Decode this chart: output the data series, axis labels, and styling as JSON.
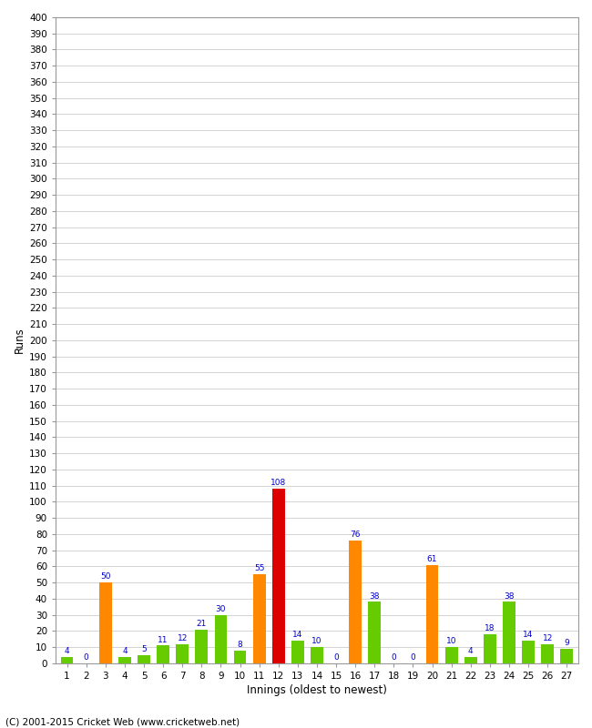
{
  "innings": [
    1,
    2,
    3,
    4,
    5,
    6,
    7,
    8,
    9,
    10,
    11,
    12,
    13,
    14,
    15,
    16,
    17,
    18,
    19,
    20,
    21,
    22,
    23,
    24,
    25,
    26,
    27
  ],
  "values": [
    4,
    0,
    50,
    4,
    5,
    11,
    12,
    21,
    30,
    8,
    55,
    108,
    14,
    10,
    0,
    76,
    38,
    0,
    0,
    61,
    10,
    4,
    18,
    38,
    14,
    12,
    9
  ],
  "colors": [
    "#66cc00",
    "#66cc00",
    "#ff8800",
    "#66cc00",
    "#66cc00",
    "#66cc00",
    "#66cc00",
    "#66cc00",
    "#66cc00",
    "#66cc00",
    "#ff8800",
    "#dd0000",
    "#66cc00",
    "#66cc00",
    "#66cc00",
    "#ff8800",
    "#66cc00",
    "#66cc00",
    "#66cc00",
    "#ff8800",
    "#66cc00",
    "#66cc00",
    "#66cc00",
    "#66cc00",
    "#66cc00",
    "#66cc00",
    "#66cc00"
  ],
  "xlabel": "Innings (oldest to newest)",
  "ylabel": "Runs",
  "ylim": [
    0,
    400
  ],
  "ytick_step": 10,
  "footer": "(C) 2001-2015 Cricket Web (www.cricketweb.net)",
  "label_color": "#0000cc",
  "grid_color": "#cccccc",
  "bg_color": "#ffffff",
  "plot_bg_color": "#ffffff",
  "spine_color": "#999999",
  "tick_label_fontsize": 7.5,
  "axis_label_fontsize": 8.5,
  "value_label_fontsize": 6.5,
  "footer_fontsize": 7.5
}
